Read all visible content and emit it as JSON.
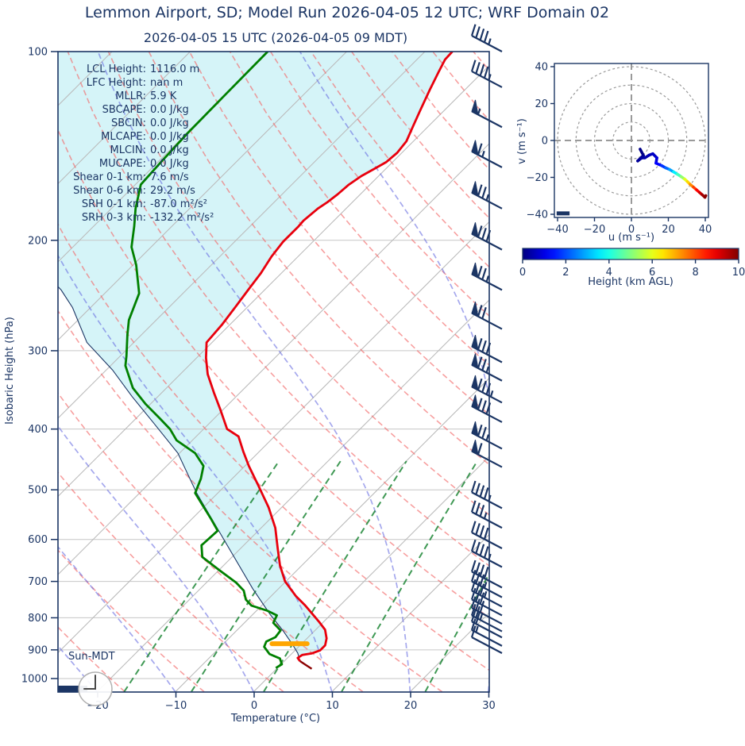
{
  "header": {
    "title": "Lemmon Airport, SD; Model Run 2026-04-05 12 UTC; WRF Domain 02",
    "subtitle": "2026-04-05 15 UTC  (2026-04-05 09 MDT)"
  },
  "colors": {
    "navy": "#1b3564",
    "temperature_line": "#e8000d",
    "surface_tail_line": "#8b0000",
    "dewpoint_line": "#008000",
    "parcel_line": "#1b3564",
    "lcl_bar": "#ffa500",
    "cin_shade": "rgba(178,235,242,0.55)",
    "dry_adiabat": "rgba(242,108,108,0.65)",
    "moist_adiabat": "rgba(105,110,225,0.60)",
    "mixing_line": "rgba(16,128,42,0.80)",
    "isotherm": "#bbbbbb",
    "pressure_grid": "#c6c6c6",
    "hodo_ring": "#9a9a9a"
  },
  "chart_data": [
    {
      "type": "skewt",
      "xlabel": "Temperature (°C)",
      "ylabel": "Isobaric Height (hPa)",
      "xlim_c": [
        -25,
        30
      ],
      "plim_hpa": [
        100,
        1050
      ],
      "pressure_ticks": [
        100,
        200,
        300,
        400,
        500,
        600,
        700,
        800,
        900,
        1000
      ],
      "temp_ticks": [
        {
          "v": -20,
          "label": "−20"
        },
        {
          "v": -10,
          "label": "−10"
        },
        {
          "v": 0,
          "label": "0"
        },
        {
          "v": 10,
          "label": "10"
        },
        {
          "v": 20,
          "label": "20"
        },
        {
          "v": 30,
          "label": "30"
        }
      ],
      "stats": [
        {
          "label": "LCL Height:",
          "value": "1116.0 m"
        },
        {
          "label": "LFC Height:",
          "value": "nan m"
        },
        {
          "label": "MLLR:",
          "value": "5.9 K"
        },
        {
          "label": "SBCAPE:",
          "value": "0.0 J/kg"
        },
        {
          "label": "SBCIN:",
          "value": "0.0 J/kg"
        },
        {
          "label": "MLCAPE:",
          "value": "0.0 J/kg"
        },
        {
          "label": "MLCIN:",
          "value": "0.0 J/kg"
        },
        {
          "label": "MUCAPE:",
          "value": "0.0 J/kg"
        },
        {
          "label": "Shear 0-1 km:",
          "value": "7.6 m/s"
        },
        {
          "label": "Shear 0-6 km:",
          "value": "29.2 m/s"
        },
        {
          "label": "SRH 0-1 km:",
          "value": "-87.0 m²/s²"
        },
        {
          "label": "SRH 0-3 km:",
          "value": "-132.2 m²/s²"
        }
      ],
      "sun_label": "Sun-MDT",
      "clock_time": "09:00",
      "temperature_profile": [
        [
          100,
          -56.5
        ],
        [
          103,
          -56.4
        ],
        [
          108,
          -55.6
        ],
        [
          115,
          -54.5
        ],
        [
          124,
          -53.1
        ],
        [
          132,
          -51.9
        ],
        [
          139,
          -50.9
        ],
        [
          145,
          -50.6
        ],
        [
          150,
          -50.8
        ],
        [
          154,
          -51.5
        ],
        [
          158,
          -52.2
        ],
        [
          163,
          -52.7
        ],
        [
          169,
          -52.9
        ],
        [
          174,
          -53.2
        ],
        [
          178,
          -53.6
        ],
        [
          186,
          -53.9
        ],
        [
          190,
          -53.8
        ],
        [
          201,
          -53.8
        ],
        [
          212,
          -53.4
        ],
        [
          226,
          -52.6
        ],
        [
          240,
          -52.1
        ],
        [
          254,
          -51.6
        ],
        [
          273,
          -51.0
        ],
        [
          291,
          -50.7
        ],
        [
          308,
          -48.8
        ],
        [
          327,
          -46.5
        ],
        [
          351,
          -43.2
        ],
        [
          372,
          -40.4
        ],
        [
          400,
          -37.0
        ],
        [
          411,
          -34.6
        ],
        [
          434,
          -32.1
        ],
        [
          458,
          -29.5
        ],
        [
          492,
          -25.8
        ],
        [
          533,
          -21.7
        ],
        [
          575,
          -18.2
        ],
        [
          621,
          -15.2
        ],
        [
          660,
          -12.8
        ],
        [
          700,
          -10.1
        ],
        [
          738,
          -6.9
        ],
        [
          764,
          -4.5
        ],
        [
          788,
          -2.5
        ],
        [
          813,
          -0.5
        ],
        [
          836,
          1.2
        ],
        [
          863,
          2.5
        ],
        [
          885,
          3.2
        ],
        [
          902,
          3.2
        ],
        [
          912,
          2.5
        ],
        [
          917,
          1.5
        ],
        [
          927,
          1.3
        ],
        [
          938,
          2.0
        ]
      ],
      "surface_tail": [
        [
          938,
          2.0
        ],
        [
          951,
          3.2
        ],
        [
          965,
          4.5
        ]
      ],
      "dewpoint_profile": [
        [
          100,
          -80.1
        ],
        [
          118,
          -80.0
        ],
        [
          135,
          -79.9
        ],
        [
          150,
          -79.6
        ],
        [
          163,
          -79.3
        ],
        [
          178,
          -76.9
        ],
        [
          190,
          -74.8
        ],
        [
          199,
          -73.4
        ],
        [
          205,
          -72.5
        ],
        [
          219,
          -69.6
        ],
        [
          243,
          -65.6
        ],
        [
          268,
          -63.5
        ],
        [
          283,
          -61.8
        ],
        [
          306,
          -59.2
        ],
        [
          317,
          -58.1
        ],
        [
          344,
          -54.3
        ],
        [
          365,
          -50.6
        ],
        [
          385,
          -46.9
        ],
        [
          400,
          -44.3
        ],
        [
          417,
          -42.0
        ],
        [
          437,
          -38.0
        ],
        [
          458,
          -35.3
        ],
        [
          480,
          -34.0
        ],
        [
          506,
          -32.9
        ],
        [
          557,
          -27.5
        ],
        [
          581,
          -25.2
        ],
        [
          613,
          -25.4
        ],
        [
          640,
          -23.8
        ],
        [
          672,
          -19.9
        ],
        [
          703,
          -16.2
        ],
        [
          724,
          -14.2
        ],
        [
          748,
          -12.8
        ],
        [
          765,
          -11.3
        ],
        [
          779,
          -8.7
        ],
        [
          793,
          -6.8
        ],
        [
          815,
          -6.3
        ],
        [
          838,
          -4.4
        ],
        [
          859,
          -4.2
        ],
        [
          873,
          -4.8
        ],
        [
          890,
          -4.4
        ],
        [
          914,
          -2.8
        ],
        [
          929,
          -0.9
        ],
        [
          949,
          0.1
        ],
        [
          962,
          -0.2
        ]
      ],
      "parcel_profile": [
        [
          228,
          -79.5
        ],
        [
          240,
          -76.0
        ],
        [
          256,
          -72.3
        ],
        [
          291,
          -66.0
        ],
        [
          322,
          -59.2
        ],
        [
          355,
          -53.3
        ],
        [
          391,
          -47.2
        ],
        [
          437,
          -40.2
        ],
        [
          506,
          -32.7
        ],
        [
          621,
          -21.4
        ],
        [
          719,
          -13.3
        ],
        [
          790,
          -7.8
        ],
        [
          841,
          -3.9
        ],
        [
          882,
          -1.1
        ],
        [
          911,
          0.7
        ],
        [
          938,
          2.0
        ]
      ],
      "lcl_bar": {
        "pressure": 880,
        "t_min": -3.8,
        "t_max": 0.7
      },
      "wind_barbs": [
        [
          100,
          0,
          4,
          1
        ],
        [
          114,
          0,
          4,
          1
        ],
        [
          132,
          1,
          0,
          1
        ],
        [
          153,
          1,
          1,
          1
        ],
        [
          178,
          1,
          2,
          1
        ],
        [
          207,
          1,
          3,
          0
        ],
        [
          240,
          1,
          2,
          1
        ],
        [
          277,
          1,
          2,
          0
        ],
        [
          313,
          1,
          3,
          0
        ],
        [
          335,
          1,
          2,
          1
        ],
        [
          363,
          1,
          3,
          1
        ],
        [
          390,
          1,
          3,
          0
        ],
        [
          430,
          1,
          2,
          1
        ],
        [
          460,
          1,
          1,
          0
        ],
        [
          535,
          0,
          4,
          1
        ],
        [
          575,
          0,
          3,
          1
        ],
        [
          620,
          0,
          4,
          0
        ],
        [
          664,
          0,
          4,
          1
        ],
        [
          716,
          0,
          4,
          0
        ],
        [
          742,
          0,
          3,
          1
        ],
        [
          768,
          0,
          3,
          1
        ],
        [
          793,
          0,
          3,
          0
        ],
        [
          818,
          0,
          3,
          0
        ],
        [
          841,
          0,
          2,
          1
        ],
        [
          860,
          0,
          2,
          0
        ],
        [
          887,
          0,
          1,
          1
        ],
        [
          911,
          0,
          1,
          0
        ]
      ],
      "background": {
        "isotherms_c": [
          -120,
          -110,
          -100,
          -90,
          -80,
          -70,
          -60,
          -50,
          -40,
          -30,
          -20,
          -10,
          0,
          10,
          20,
          30
        ],
        "dry_adiabats_theta_c": [
          -30,
          -20,
          -10,
          0,
          10,
          20,
          30,
          40,
          50,
          60,
          70,
          80,
          90,
          100,
          110,
          120,
          130,
          140,
          150
        ],
        "moist_adiabats_t0_c": [
          -40,
          -30,
          -20,
          -10,
          0,
          10,
          20,
          30,
          40
        ],
        "mixing_ratios_gkg": [
          1,
          2,
          4,
          8,
          16,
          32
        ],
        "mixing_line_top_hpa": 440
      }
    },
    {
      "type": "hodograph",
      "xlabel": "u (m s⁻¹)",
      "ylabel": "v (m s⁻¹)",
      "xticks": [
        {
          "v": -40,
          "label": "−40"
        },
        {
          "v": -20,
          "label": "−20"
        },
        {
          "v": 0,
          "label": "0"
        },
        {
          "v": 20,
          "label": "20"
        },
        {
          "v": 40,
          "label": "40"
        }
      ],
      "yticks": [
        {
          "v": 40,
          "label": "40"
        },
        {
          "v": 20,
          "label": "20"
        },
        {
          "v": 0,
          "label": "0"
        },
        {
          "v": -20,
          "label": "−20"
        },
        {
          "v": -40,
          "label": "−40"
        }
      ],
      "ring_radii_ms": [
        10,
        20,
        30,
        40
      ],
      "trace_uvh": [
        [
          4.7,
          -4.7,
          0.05
        ],
        [
          6.5,
          -8.1,
          0.1
        ],
        [
          3.4,
          -11.1,
          0.2
        ],
        [
          5.5,
          -9.5,
          0.3
        ],
        [
          7.3,
          -9.4,
          0.4
        ],
        [
          9.5,
          -8.0,
          0.5
        ],
        [
          11.6,
          -7.2,
          0.6
        ],
        [
          13.8,
          -9.4,
          0.8
        ],
        [
          13.3,
          -12.3,
          1.0
        ],
        [
          16.3,
          -13.6,
          1.5
        ],
        [
          18.5,
          -14.8,
          2.0
        ],
        [
          20.6,
          -15.7,
          2.5
        ],
        [
          22.8,
          -17.0,
          3.2
        ],
        [
          24.9,
          -18.3,
          4.0
        ],
        [
          26.9,
          -19.6,
          4.8
        ],
        [
          28.8,
          -20.9,
          5.6
        ],
        [
          30.3,
          -22.3,
          6.3
        ],
        [
          31.8,
          -23.8,
          7.0
        ],
        [
          33.6,
          -25.3,
          7.8
        ],
        [
          35.3,
          -26.8,
          8.5
        ],
        [
          36.9,
          -28.2,
          9.0
        ],
        [
          38.3,
          -29.4,
          9.5
        ],
        [
          39.8,
          -30.8,
          9.8
        ],
        [
          40.3,
          -29.9,
          10.0
        ]
      ],
      "marker_bar_uv": {
        "u0": -40.5,
        "u1": -33.5,
        "v": -39.5
      },
      "colorbar": {
        "label": "Height (km AGL)",
        "ticks": [
          0,
          2,
          4,
          6,
          8,
          10
        ],
        "min": 0,
        "max": 10,
        "colormap": "jet"
      }
    }
  ]
}
